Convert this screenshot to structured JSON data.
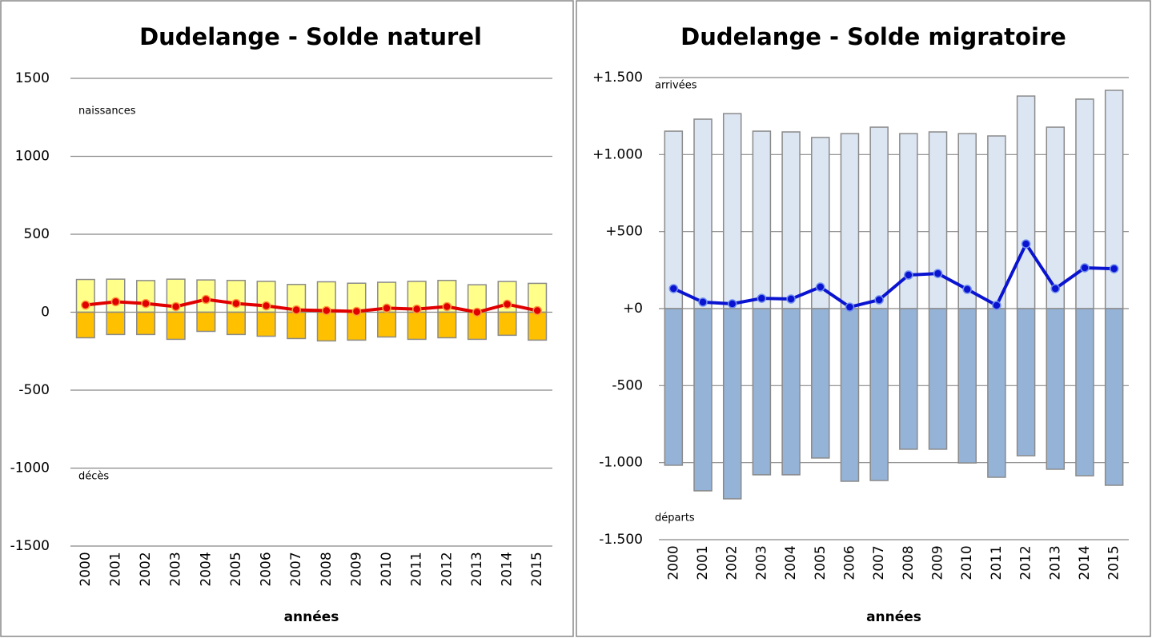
{
  "chart_data": [
    {
      "type": "bar",
      "title": "Dudelange - Solde naturel",
      "xlabel": "années",
      "categories": [
        "2000",
        "2001",
        "2002",
        "2003",
        "2004",
        "2005",
        "2006",
        "2007",
        "2008",
        "2009",
        "2010",
        "2011",
        "2012",
        "2013",
        "2014",
        "2015"
      ],
      "series": [
        {
          "name": "naissances",
          "type": "bar",
          "color": "#ffff8a",
          "values": [
            210,
            212,
            203,
            212,
            207,
            204,
            198,
            178,
            195,
            186,
            192,
            198,
            204,
            176,
            197,
            185
          ]
        },
        {
          "name": "décès",
          "type": "bar",
          "color": "#ffc000",
          "values": [
            -164,
            -143,
            -143,
            -174,
            -123,
            -143,
            -154,
            -169,
            -184,
            -179,
            -159,
            -174,
            -164,
            -174,
            -148,
            -179
          ]
        },
        {
          "type": "line",
          "color": "#e00000",
          "values": [
            46,
            67,
            56,
            36,
            82,
            56,
            41,
            15,
            10,
            5,
            26,
            20,
            36,
            0,
            51,
            10
          ]
        }
      ],
      "ylim": [
        -1500,
        1500
      ],
      "yticks": [
        1500,
        1000,
        500,
        0,
        -500,
        -1000,
        -1500
      ],
      "grid": true
    },
    {
      "type": "bar",
      "title": "Dudelange - Solde migratoire",
      "xlabel": "années",
      "categories": [
        "2000",
        "2001",
        "2002",
        "2003",
        "2004",
        "2005",
        "2006",
        "2007",
        "2008",
        "2009",
        "2010",
        "2011",
        "2012",
        "2013",
        "2014",
        "2015"
      ],
      "series": [
        {
          "name": "arrivées",
          "type": "bar",
          "color": "#dce6f2",
          "values": [
            1152,
            1230,
            1266,
            1152,
            1147,
            1111,
            1136,
            1178,
            1136,
            1147,
            1136,
            1121,
            1380,
            1178,
            1360,
            1417
          ]
        },
        {
          "name": "départs",
          "type": "bar",
          "color": "#95b3d7",
          "values": [
            -1017,
            -1183,
            -1235,
            -1079,
            -1079,
            -970,
            -1121,
            -1116,
            -913,
            -913,
            -1002,
            -1095,
            -955,
            -1043,
            -1085,
            -1147
          ]
        },
        {
          "type": "line",
          "color": "#0a14d0",
          "values": [
            130,
            42,
            31,
            67,
            62,
            140,
            10,
            57,
            218,
            228,
            125,
            21,
            420,
            130,
            265,
            259
          ]
        }
      ],
      "ylim": [
        -1500,
        1500
      ],
      "yticks": [
        {
          "value": 1500,
          "label": "+1.500"
        },
        {
          "value": 1000,
          "label": "+1.000"
        },
        {
          "value": 500,
          "label": "+500"
        },
        {
          "value": 0,
          "label": "+0"
        },
        {
          "value": -500,
          "label": "-500"
        },
        {
          "value": -1000,
          "label": "-1.000"
        },
        {
          "value": -1500,
          "label": "-1.500"
        }
      ],
      "grid": true
    }
  ]
}
